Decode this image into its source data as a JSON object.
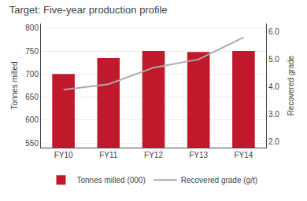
{
  "chart_data": {
    "type": "bar",
    "title": "Target: Five-year production profile",
    "categories": [
      "FY10",
      "FY11",
      "FY12",
      "FY13",
      "FY14"
    ],
    "series": [
      {
        "name": "Tonnes milled (000)",
        "type": "bar",
        "color": "#C0192C",
        "values": [
          700,
          735,
          750,
          748,
          750
        ]
      },
      {
        "name": "Recovered grade (g/t)",
        "type": "line",
        "color": "#aaaaaa",
        "axis": "y2",
        "values": [
          3.9,
          4.1,
          4.7,
          5.0,
          5.8
        ]
      }
    ],
    "ylabel": "Tonnes milled",
    "y2label": "Recovered grade",
    "ylim": [
      540,
      810
    ],
    "yticks": [
      550,
      600,
      650,
      700,
      750,
      800
    ],
    "y2lim": [
      1.8,
      6.3
    ],
    "y2ticks": [
      {
        "value": 2.0,
        "label": "2.0"
      },
      {
        "value": 3.0,
        "label": "3.0"
      },
      {
        "value": 4.0,
        "label": "4.0"
      },
      {
        "value": 5.0,
        "label": "5.0"
      },
      {
        "value": 6.0,
        "label": "6.0"
      }
    ],
    "grid": true,
    "legend": "bottom"
  }
}
